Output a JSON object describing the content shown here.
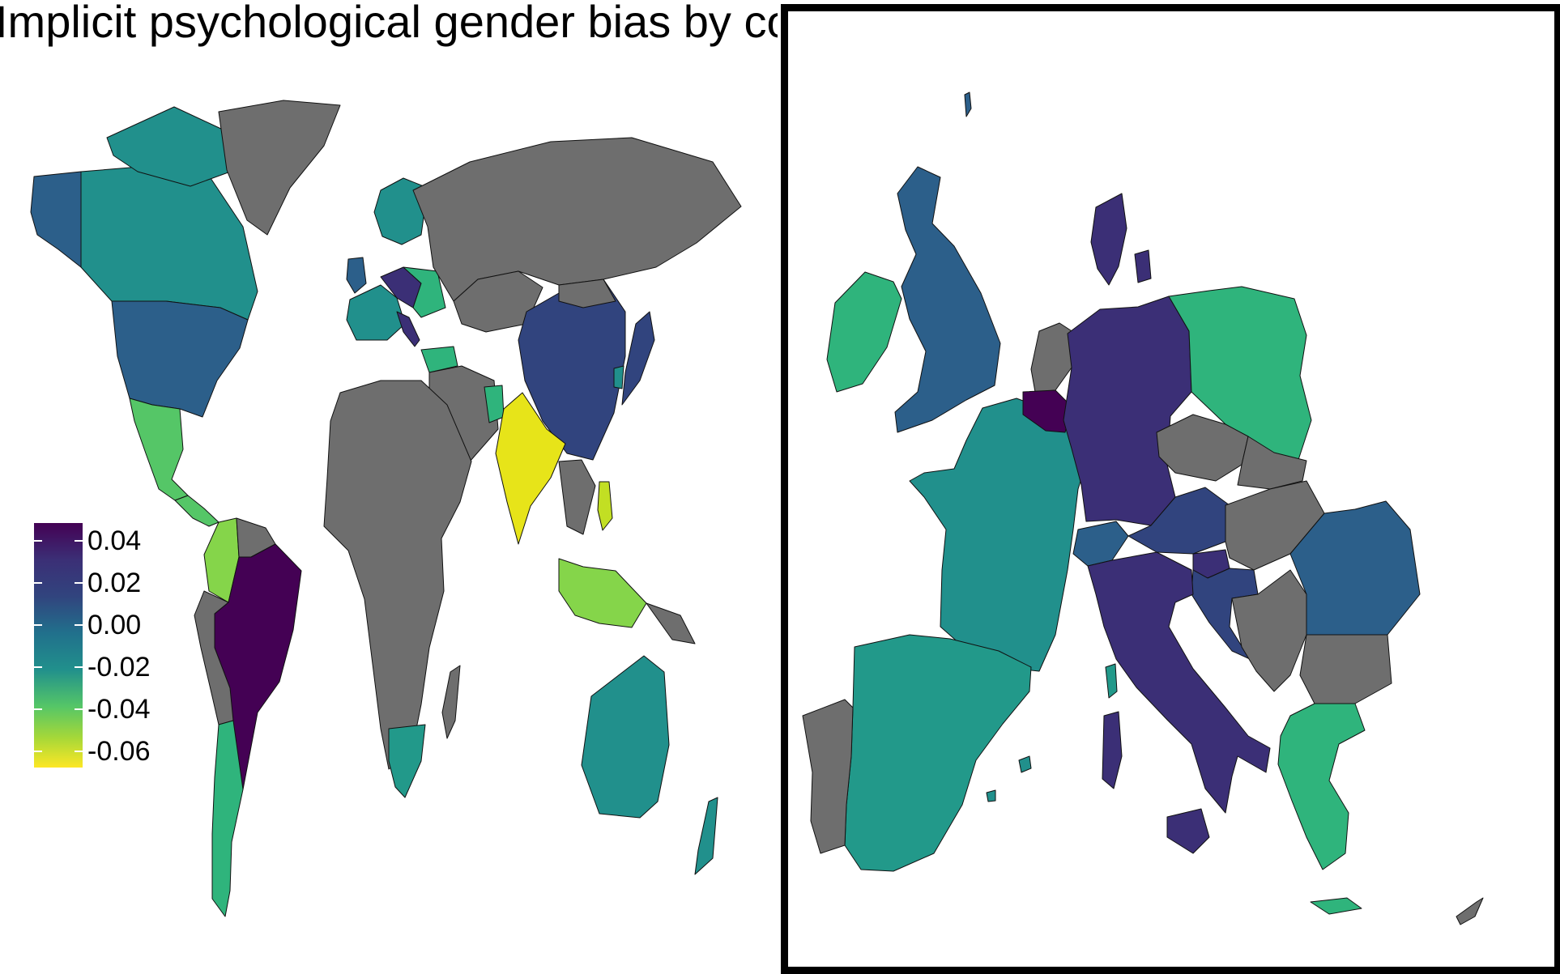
{
  "title": "Implicit psychological gender bias by co",
  "legend": {
    "labels": [
      "0.04",
      "0.02",
      "0.00",
      "-0.02",
      "-0.04",
      "-0.06"
    ],
    "scale": "viridis"
  },
  "colors": {
    "no_data": "#6e6e6e",
    "border": "#111111",
    "background": "#ffffff",
    "frame": "#000000",
    "v004": "#440154",
    "v003": "#3b2f76",
    "v002": "#31447e",
    "v001": "#2c5f8a",
    "v000": "#21908c",
    "vm001": "#22998a",
    "vm002": "#2fb47c",
    "vm003": "#55c667",
    "vm004": "#85d54a",
    "vm005": "#c2df23",
    "vm006": "#e7e419"
  }
}
